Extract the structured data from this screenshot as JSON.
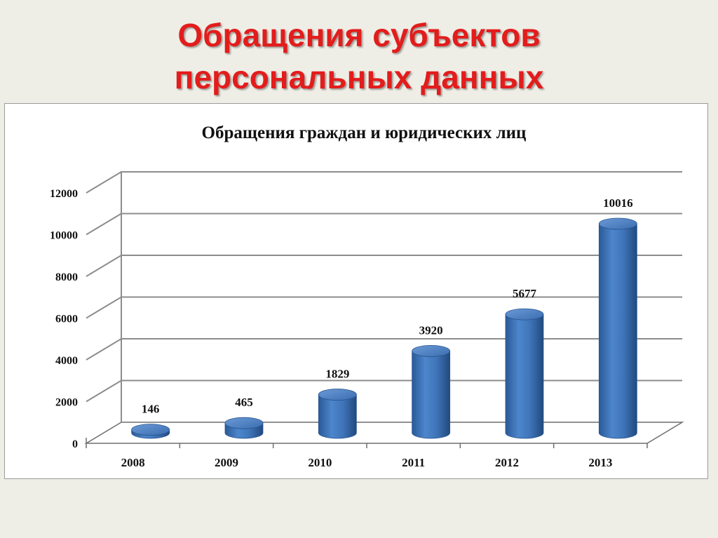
{
  "slide": {
    "title_line1": "Обращения субъектов",
    "title_line2": "персональных данных"
  },
  "colors": {
    "title": "#e31c1c",
    "bar": "#3f74b8",
    "background": "#efeee6"
  },
  "chart_data": {
    "type": "bar",
    "style": "3d-cylinder",
    "title": "Обращения граждан и юридических лиц",
    "categories": [
      "2008",
      "2009",
      "2010",
      "2011",
      "2012",
      "2013"
    ],
    "values": [
      146,
      465,
      1829,
      3920,
      5677,
      10016
    ],
    "data_labels": [
      "146",
      "465",
      "1829",
      "3920",
      "5677",
      "10016"
    ],
    "y_ticks": [
      "0",
      "2000",
      "4000",
      "6000",
      "8000",
      "10000",
      "12000"
    ],
    "ylim": [
      0,
      12000
    ],
    "grid": true,
    "legend": "none"
  }
}
